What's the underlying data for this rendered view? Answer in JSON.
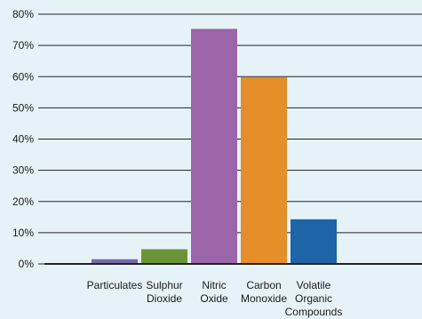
{
  "chart_data": {
    "type": "bar",
    "title": "",
    "xlabel": "",
    "ylabel": "",
    "ylim": [
      0,
      80
    ],
    "yticks": [
      "0%",
      "10%",
      "20%",
      "30%",
      "40%",
      "50%",
      "60%",
      "70%",
      "80%"
    ],
    "grid": true,
    "categories": [
      [
        "Particulates"
      ],
      [
        "Sulphur",
        "Dioxide"
      ],
      [
        "Nitric",
        "Oxide"
      ],
      [
        "Carbon",
        "Monoxide"
      ],
      [
        "Volatile",
        "Organic",
        "Compounds"
      ]
    ],
    "values": [
      1.5,
      4.7,
      75.3,
      59.8,
      14.3
    ],
    "colors": [
      "#7668ad",
      "#6b9337",
      "#9c64a9",
      "#e58e2a",
      "#1f64a8"
    ]
  }
}
